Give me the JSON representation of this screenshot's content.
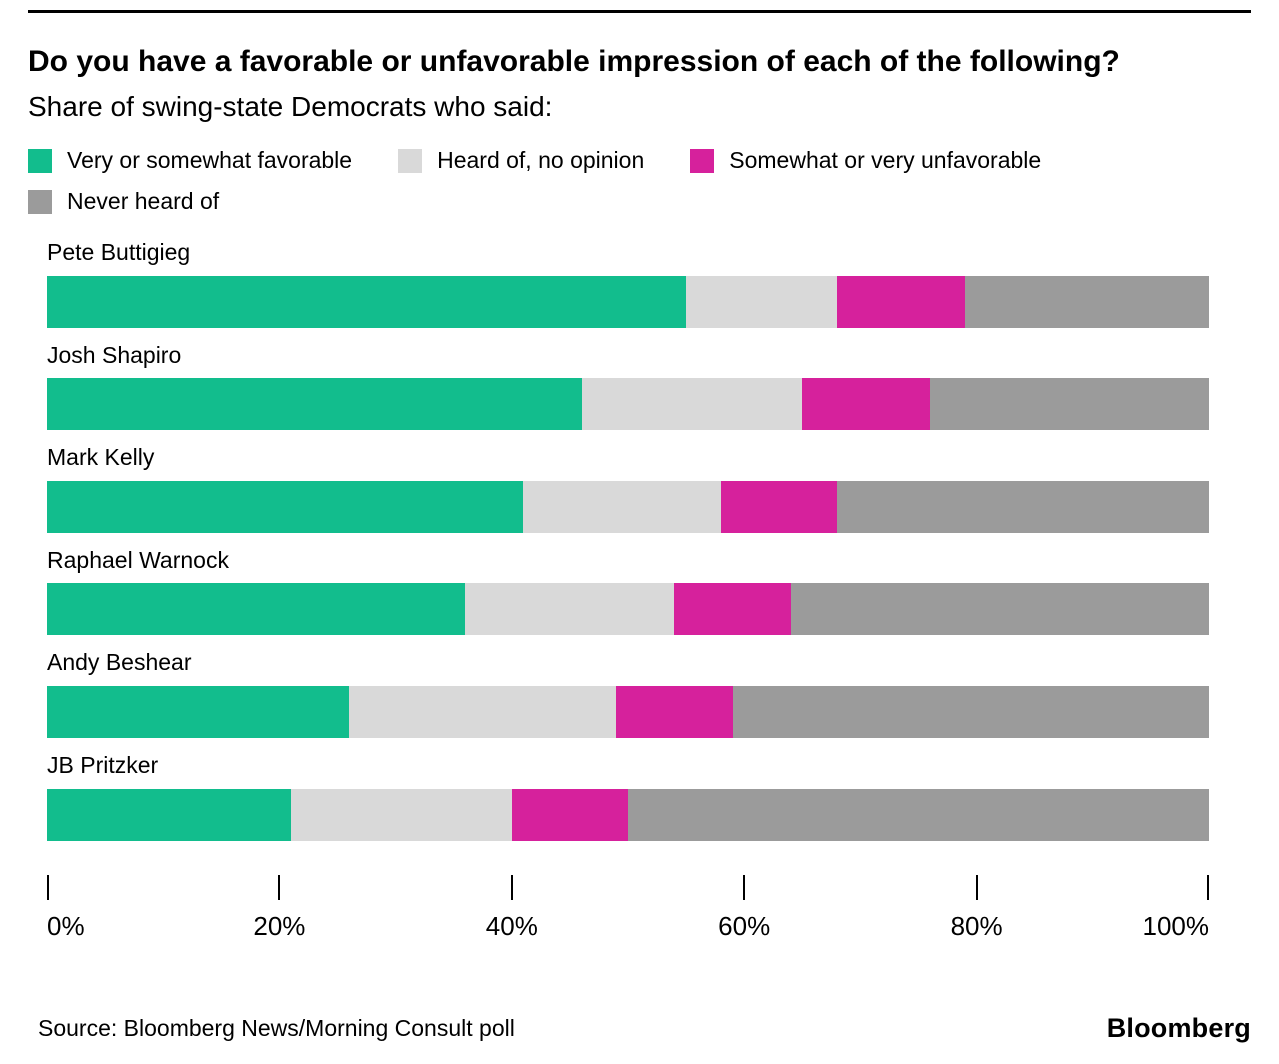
{
  "chart_data": {
    "type": "bar",
    "orientation": "horizontal",
    "stacked": true,
    "title": "Do you have a favorable or unfavorable impression of each of the following?",
    "subtitle": "Share of swing-state Democrats who said:",
    "categories": [
      "Pete Buttigieg",
      "Josh Shapiro",
      "Mark Kelly",
      "Raphael Warnock",
      "Andy Beshear",
      "JB Pritzker"
    ],
    "series": [
      {
        "name": "Very or somewhat favorable",
        "color": "#12bd8d",
        "values": [
          55,
          46,
          41,
          36,
          26,
          21
        ]
      },
      {
        "name": "Heard of, no opinion",
        "color": "#d9d9d9",
        "values": [
          13,
          19,
          17,
          18,
          23,
          19
        ]
      },
      {
        "name": "Somewhat or very unfavorable",
        "color": "#d6219c",
        "values": [
          11,
          11,
          10,
          10,
          10,
          10
        ]
      },
      {
        "name": "Never heard of",
        "color": "#9b9b9b",
        "values": [
          21,
          24,
          32,
          36,
          41,
          50
        ]
      }
    ],
    "xlim": [
      0,
      100
    ],
    "x_ticks": [
      "0%",
      "20%",
      "40%",
      "60%",
      "80%",
      "100%"
    ],
    "grid": false,
    "legend_position": "top",
    "source": "Source: Bloomberg News/Morning Consult poll",
    "brand": "Bloomberg"
  }
}
